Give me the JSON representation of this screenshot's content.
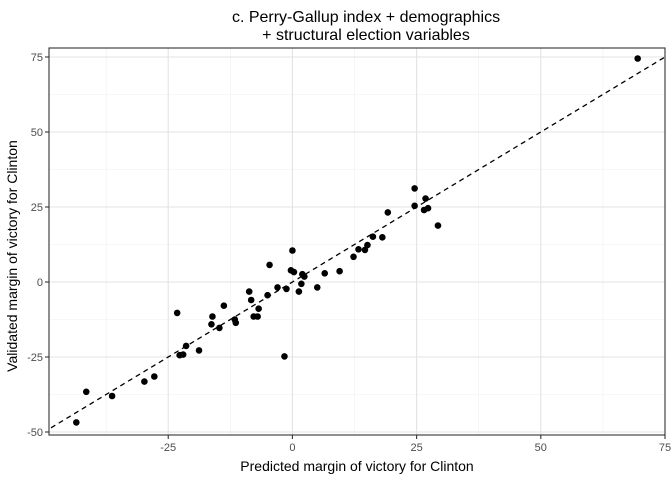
{
  "chart_data": {
    "type": "scatter",
    "title_line1": "c. Perry-Gallup index + demographics",
    "title_line2": "+ structural election variables",
    "xlabel": "Predicted margin of victory for Clinton",
    "ylabel": "Validated margin of victory for Clinton",
    "xlim": [
      -49,
      75
    ],
    "ylim": [
      -51,
      78
    ],
    "x_ticks": [
      -25,
      0,
      25,
      50,
      75
    ],
    "x_tick_labels": [
      "-25",
      "0",
      "25",
      "50",
      "75"
    ],
    "y_ticks": [
      -50,
      -25,
      0,
      25,
      50,
      75
    ],
    "y_tick_labels": [
      "-50",
      "-25",
      "0",
      "25",
      "50",
      "75"
    ],
    "grid": true,
    "reference_line": {
      "style": "dashed",
      "slope": 1,
      "intercept": 0
    },
    "points": [
      {
        "x": 69.5,
        "y": 74.5
      },
      {
        "x": -43.5,
        "y": -46.8
      },
      {
        "x": -41.5,
        "y": -36.6
      },
      {
        "x": -36.3,
        "y": -38.0
      },
      {
        "x": -29.8,
        "y": -33.2
      },
      {
        "x": -27.8,
        "y": -31.5
      },
      {
        "x": -23.2,
        "y": -10.3
      },
      {
        "x": -22.7,
        "y": -24.4
      },
      {
        "x": -22.0,
        "y": -24.2
      },
      {
        "x": -21.4,
        "y": -21.3
      },
      {
        "x": -18.8,
        "y": -22.8
      },
      {
        "x": -16.3,
        "y": -14.1
      },
      {
        "x": -16.1,
        "y": -11.5
      },
      {
        "x": -14.7,
        "y": -15.3
      },
      {
        "x": -13.8,
        "y": -7.9
      },
      {
        "x": -11.6,
        "y": -12.5
      },
      {
        "x": -11.4,
        "y": -13.6
      },
      {
        "x": -8.7,
        "y": -3.2
      },
      {
        "x": -8.3,
        "y": -6.0
      },
      {
        "x": -7.8,
        "y": -11.5
      },
      {
        "x": -7.0,
        "y": -11.5
      },
      {
        "x": -6.8,
        "y": -8.9
      },
      {
        "x": -5.0,
        "y": -4.4
      },
      {
        "x": -4.6,
        "y": 5.7
      },
      {
        "x": -3.0,
        "y": -1.8
      },
      {
        "x": -1.6,
        "y": -24.8
      },
      {
        "x": -1.2,
        "y": -2.3
      },
      {
        "x": -0.3,
        "y": 3.9
      },
      {
        "x": 0.0,
        "y": 10.5
      },
      {
        "x": 0.3,
        "y": 3.3
      },
      {
        "x": 1.3,
        "y": -3.2
      },
      {
        "x": 1.8,
        "y": -0.6
      },
      {
        "x": 2.0,
        "y": 2.6
      },
      {
        "x": 2.4,
        "y": 1.8
      },
      {
        "x": 5.0,
        "y": -1.8
      },
      {
        "x": 6.5,
        "y": 2.9
      },
      {
        "x": 9.5,
        "y": 3.6
      },
      {
        "x": 12.3,
        "y": 8.4
      },
      {
        "x": 13.3,
        "y": 10.9
      },
      {
        "x": 14.6,
        "y": 10.7
      },
      {
        "x": 15.1,
        "y": 12.3
      },
      {
        "x": 16.2,
        "y": 15.1
      },
      {
        "x": 18.1,
        "y": 14.9
      },
      {
        "x": 19.2,
        "y": 23.2
      },
      {
        "x": 24.6,
        "y": 31.2
      },
      {
        "x": 24.6,
        "y": 25.4
      },
      {
        "x": 26.5,
        "y": 24.0
      },
      {
        "x": 26.8,
        "y": 27.8
      },
      {
        "x": 27.3,
        "y": 24.6
      },
      {
        "x": 29.3,
        "y": 18.8
      }
    ]
  }
}
